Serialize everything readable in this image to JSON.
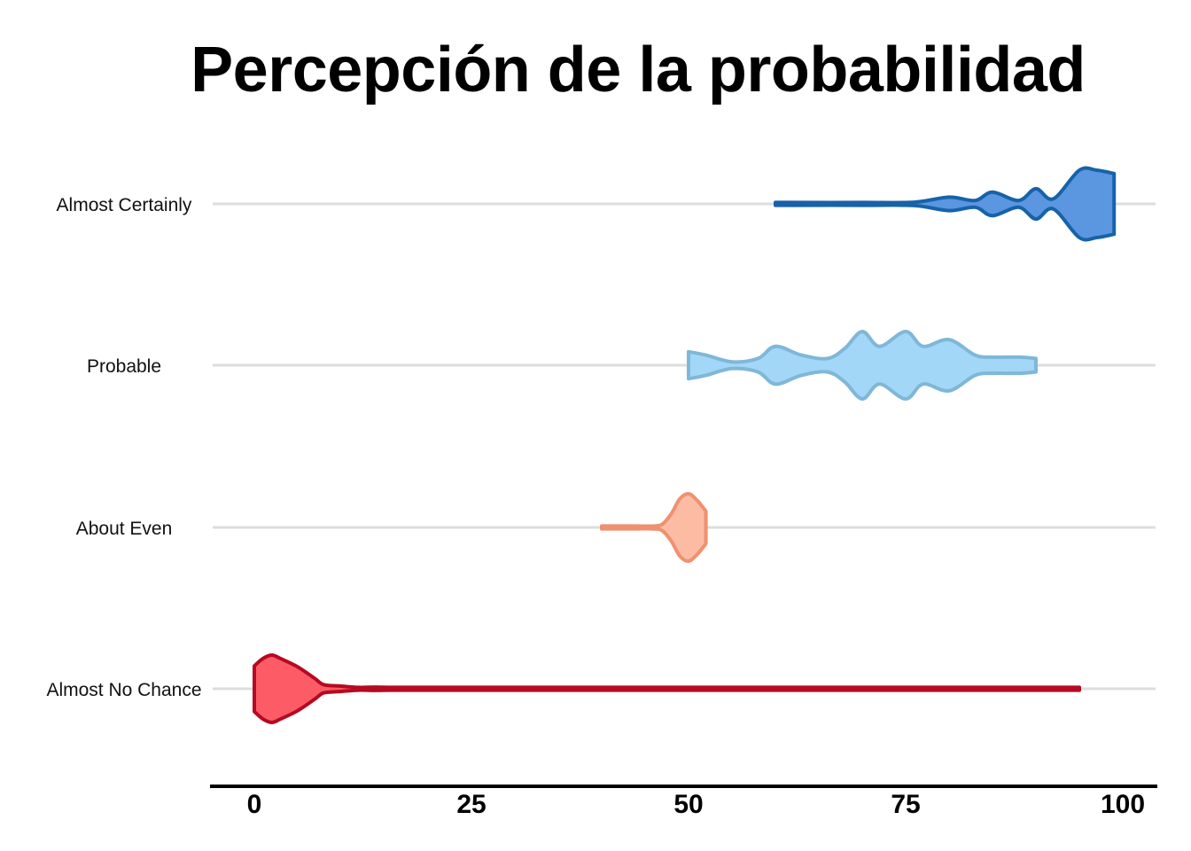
{
  "chart_data": {
    "type": "violin",
    "title": "Percepción de la probabilidad",
    "xlabel": "",
    "ylabel": "",
    "xlim": [
      0,
      100
    ],
    "xticks": [
      "0",
      "25",
      "50",
      "75",
      "100"
    ],
    "grid": "horizontal lines per category",
    "legend": "none",
    "categories": [
      "Almost Certainly",
      "Probable",
      "About Even",
      "Almost No Chance"
    ],
    "series": [
      {
        "category": "Almost Certainly",
        "fill": "#5a97e0",
        "stroke": "#1762a8",
        "profile": [
          [
            60,
            0.0
          ],
          [
            62,
            0.2
          ],
          [
            70,
            0.2
          ],
          [
            76,
            0.5
          ],
          [
            80,
            2.0
          ],
          [
            83,
            1.0
          ],
          [
            85,
            3.5
          ],
          [
            88,
            1.0
          ],
          [
            90,
            4.5
          ],
          [
            92,
            1.5
          ],
          [
            95,
            10.0
          ],
          [
            97,
            10.0
          ],
          [
            99,
            9.0
          ]
        ]
      },
      {
        "category": "Probable",
        "fill": "#a3d7f7",
        "stroke": "#80b7d8",
        "profile": [
          [
            50,
            2.0
          ],
          [
            52,
            1.5
          ],
          [
            55,
            0.5
          ],
          [
            58,
            1.0
          ],
          [
            60,
            2.8
          ],
          [
            63,
            1.5
          ],
          [
            66,
            1.0
          ],
          [
            68,
            2.5
          ],
          [
            70,
            5.0
          ],
          [
            72,
            2.8
          ],
          [
            75,
            5.0
          ],
          [
            77,
            2.8
          ],
          [
            80,
            3.8
          ],
          [
            83,
            1.5
          ],
          [
            85,
            1.2
          ],
          [
            88,
            1.2
          ],
          [
            90,
            1.0
          ]
        ]
      },
      {
        "category": "About Even",
        "fill": "#fcbca4",
        "stroke": "#ef9170",
        "profile": [
          [
            40,
            0.1
          ],
          [
            42,
            0.3
          ],
          [
            44,
            0.2
          ],
          [
            46,
            0.3
          ],
          [
            47,
            1.0
          ],
          [
            48,
            4.0
          ],
          [
            49,
            8.5
          ],
          [
            50,
            10.0
          ],
          [
            51,
            8.0
          ],
          [
            52,
            4.8
          ]
        ]
      },
      {
        "category": "Almost No Chance",
        "fill": "#fd5b66",
        "stroke": "#b50a21",
        "profile": [
          [
            0,
            6.8
          ],
          [
            1,
            9.0
          ],
          [
            2,
            10.0
          ],
          [
            3,
            9.0
          ],
          [
            5,
            6.5
          ],
          [
            7,
            3.0
          ],
          [
            8,
            1.2
          ],
          [
            10,
            0.8
          ],
          [
            12,
            0.3
          ],
          [
            14,
            0.5
          ],
          [
            16,
            0.2
          ],
          [
            20,
            0.1
          ],
          [
            95,
            0.1
          ]
        ]
      }
    ]
  }
}
